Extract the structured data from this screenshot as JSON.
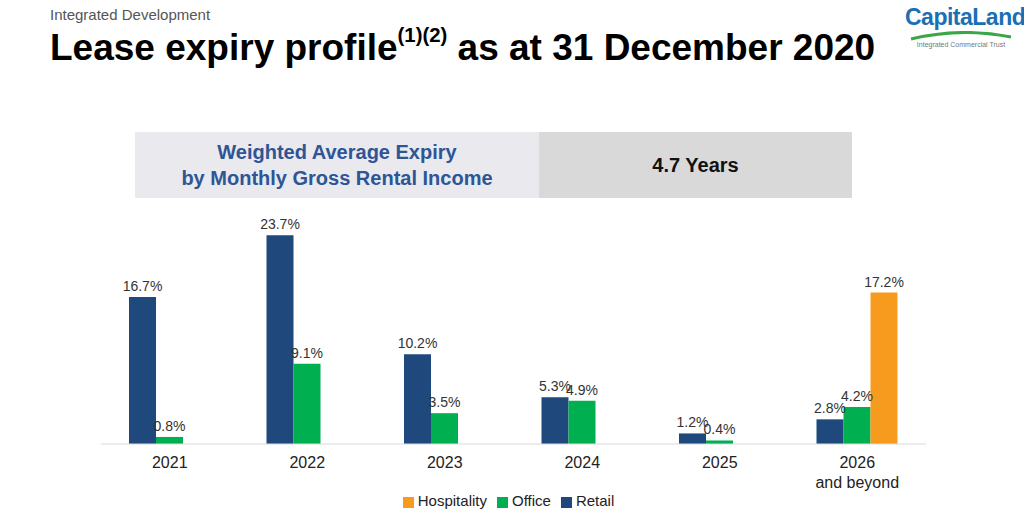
{
  "chart_data": {
    "type": "bar",
    "subtitle": "Integrated Development",
    "title": "Lease expiry profile(1)(2) as at 31 December 2020",
    "annotations": [
      "Weighted Average Expiry",
      "by Monthly Gross Rental Income",
      "4.7 Years",
      "CapitaLand",
      "Integrated Commercial Trust"
    ],
    "categories": [
      "2021",
      "2022",
      "2023",
      "2024",
      "2025",
      "2026 and beyond"
    ],
    "series": [
      {
        "name": "Retail",
        "color": "#1f497d",
        "values": [
          16.7,
          23.7,
          10.2,
          5.3,
          1.2,
          2.8
        ],
        "value_labels": [
          "16.7%",
          "23.7%",
          "10.2%",
          "5.3%",
          "1.2%",
          "2.8%"
        ]
      },
      {
        "name": "Office",
        "color": "#00b050",
        "values": [
          0.8,
          9.1,
          3.5,
          4.9,
          0.4,
          4.2
        ],
        "value_labels": [
          "0.8%",
          "9.1%",
          "3.5%",
          "4.9%",
          "0.4%",
          "4.2%"
        ]
      },
      {
        "name": "Hospitality",
        "color": "#f79b1e",
        "values": [
          null,
          null,
          null,
          null,
          null,
          17.2
        ],
        "value_labels": [
          null,
          null,
          null,
          null,
          null,
          "17.2%"
        ]
      }
    ],
    "ylim": [
      0,
      26
    ],
    "data_labels": true,
    "legend": "bottom",
    "tick_labels": "x",
    "grid": false
  }
}
